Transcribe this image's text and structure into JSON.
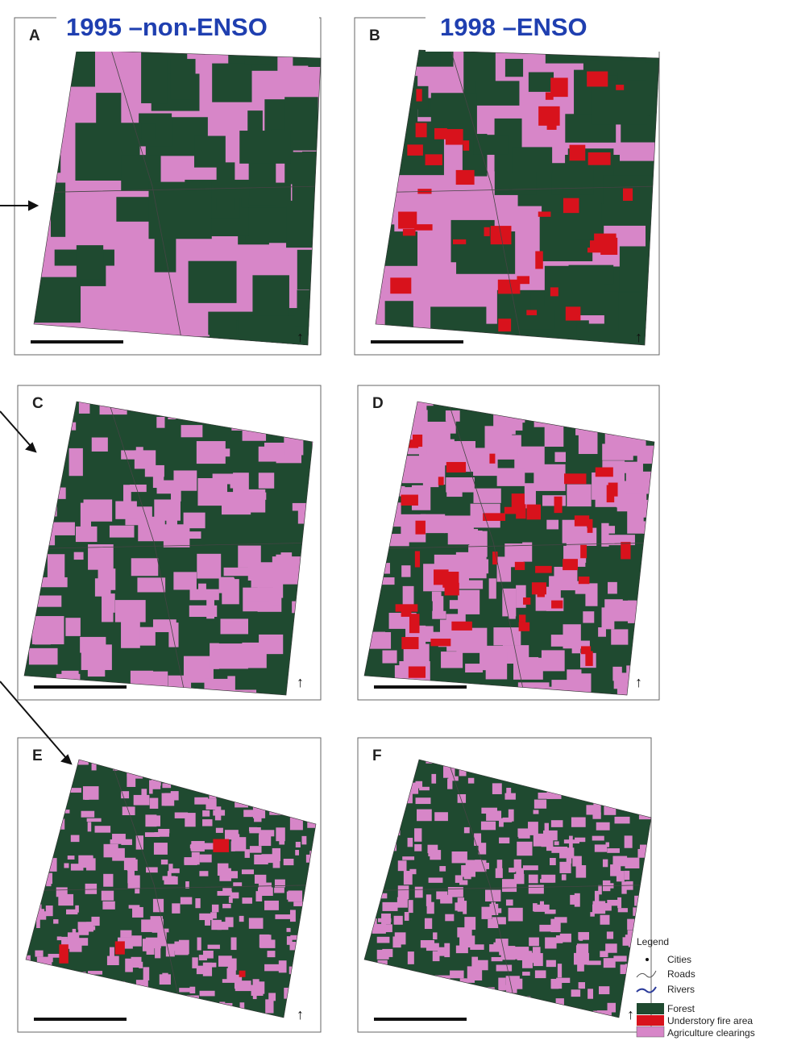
{
  "titles": [
    "1995 –non-ENSO",
    "1998 –ENSO"
  ],
  "panels": [
    {
      "label": "A"
    },
    {
      "label": "B"
    },
    {
      "label": "C"
    },
    {
      "label": "D"
    },
    {
      "label": "E"
    },
    {
      "label": "F"
    }
  ],
  "legend": {
    "title": "Legend",
    "items": [
      "Cities",
      "Roads",
      "Rivers",
      "Forest",
      "Understory fire area",
      "Agriculture clearings"
    ]
  }
}
